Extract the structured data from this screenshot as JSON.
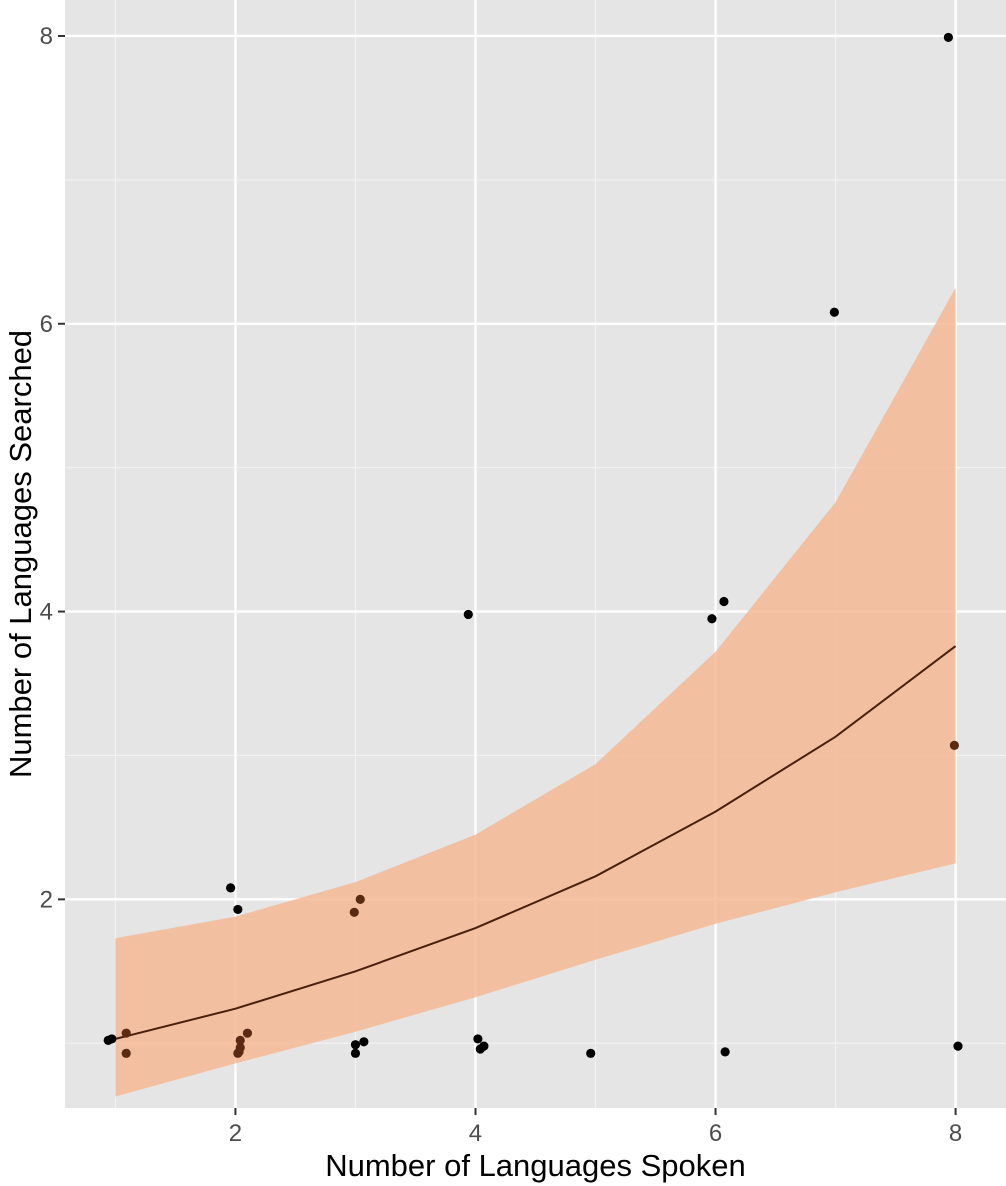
{
  "chart_data": {
    "type": "scatter",
    "title": "",
    "xlabel": "Number of Languages Spoken",
    "ylabel": "Number of Languages Searched",
    "xlim": [
      0.58,
      8.42
    ],
    "ylim": [
      0.55,
      8.25
    ],
    "x_ticks": [
      2,
      4,
      6,
      8
    ],
    "y_ticks": [
      2,
      4,
      6,
      8
    ],
    "grid": true,
    "legend": "none",
    "colors": {
      "panel": "#e5e5e5",
      "grid_major": "#ffffff",
      "grid_minor": "#f2f2f2",
      "point": "#000000",
      "point_overlap": "#5a2a12",
      "band": "#f4b994",
      "line": "#4a1f0d",
      "tick_text": "#4d4d4d"
    },
    "points": [
      {
        "x": 0.94,
        "y": 1.02
      },
      {
        "x": 0.97,
        "y": 1.03
      },
      {
        "x": 1.09,
        "y": 1.07
      },
      {
        "x": 1.09,
        "y": 0.93
      },
      {
        "x": 1.96,
        "y": 2.08
      },
      {
        "x": 2.02,
        "y": 1.93
      },
      {
        "x": 2.04,
        "y": 1.02
      },
      {
        "x": 2.04,
        "y": 0.97
      },
      {
        "x": 2.03,
        "y": 0.94
      },
      {
        "x": 2.02,
        "y": 0.93
      },
      {
        "x": 2.1,
        "y": 1.07
      },
      {
        "x": 2.99,
        "y": 1.91
      },
      {
        "x": 3.04,
        "y": 2.0
      },
      {
        "x": 3.0,
        "y": 0.99
      },
      {
        "x": 3.07,
        "y": 1.01
      },
      {
        "x": 3.0,
        "y": 0.93
      },
      {
        "x": 3.94,
        "y": 3.98
      },
      {
        "x": 4.02,
        "y": 1.03
      },
      {
        "x": 4.04,
        "y": 0.96
      },
      {
        "x": 4.07,
        "y": 0.98
      },
      {
        "x": 4.96,
        "y": 0.93
      },
      {
        "x": 5.97,
        "y": 3.95
      },
      {
        "x": 6.07,
        "y": 4.07
      },
      {
        "x": 6.08,
        "y": 0.94
      },
      {
        "x": 6.99,
        "y": 6.08
      },
      {
        "x": 7.94,
        "y": 7.99
      },
      {
        "x": 7.99,
        "y": 3.07
      },
      {
        "x": 8.02,
        "y": 0.98
      }
    ],
    "fit_line": {
      "x": [
        1,
        2,
        3,
        4,
        5,
        6,
        7,
        8
      ],
      "y": [
        1.03,
        1.24,
        1.5,
        1.8,
        2.16,
        2.61,
        3.13,
        3.76
      ]
    },
    "confidence_band": {
      "x": [
        1,
        2,
        3,
        4,
        5,
        6,
        7,
        8
      ],
      "lower": [
        0.63,
        0.86,
        1.08,
        1.32,
        1.58,
        1.83,
        2.05,
        2.25
      ],
      "upper": [
        1.73,
        1.88,
        2.12,
        2.45,
        2.94,
        3.72,
        4.76,
        6.25
      ]
    }
  }
}
